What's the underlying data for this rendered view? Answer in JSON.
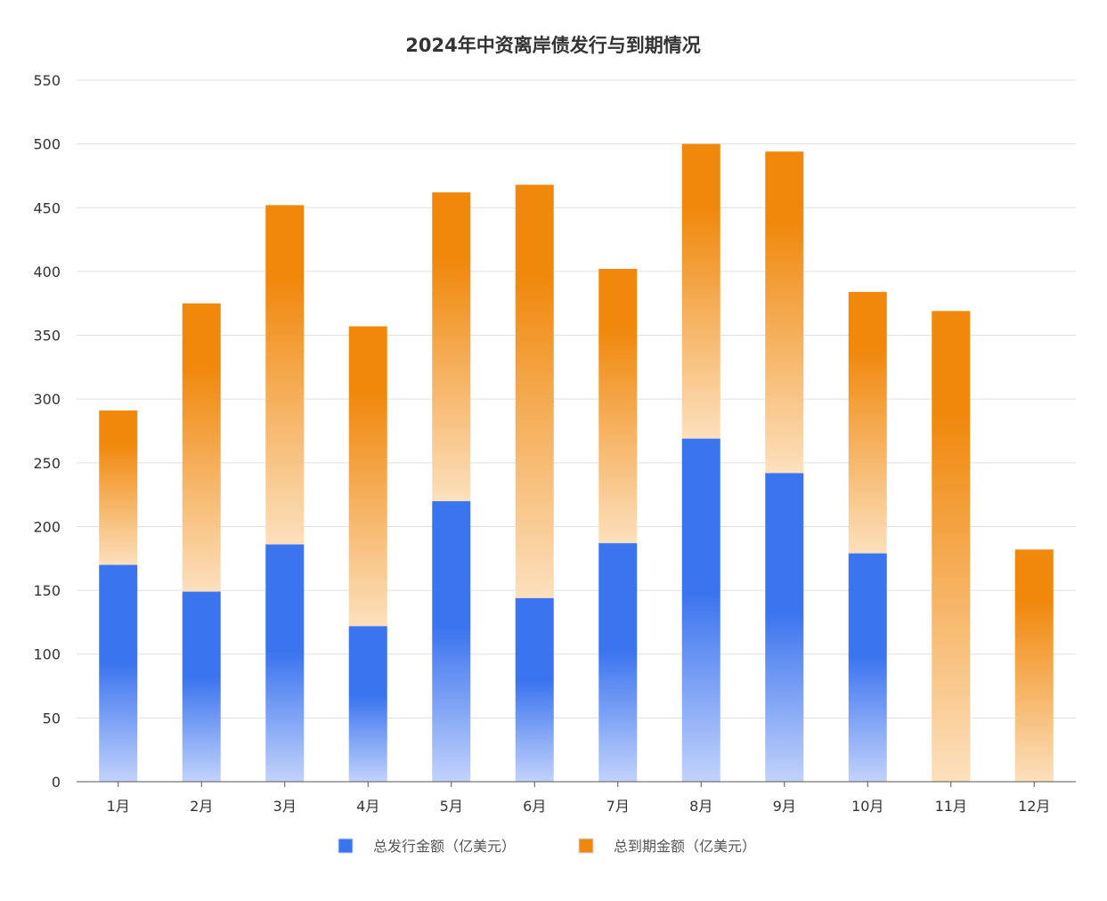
{
  "chart_data": {
    "type": "bar",
    "stacked": true,
    "title": "2024年中资离岸债发行与到期情况",
    "xlabel": "",
    "ylabel": "",
    "ylim": [
      0,
      550
    ],
    "yticks": [
      0,
      50,
      100,
      150,
      200,
      250,
      300,
      350,
      400,
      450,
      500,
      550
    ],
    "grid": true,
    "legend_position": "bottom",
    "categories": [
      "1月",
      "2月",
      "3月",
      "4月",
      "5月",
      "6月",
      "7月",
      "8月",
      "9月",
      "10月",
      "11月",
      "12月"
    ],
    "series": [
      {
        "name": "总发行金额（亿美元）",
        "color": "#3b74ef",
        "values": [
          170,
          149,
          186,
          122,
          220,
          144,
          187,
          269,
          242,
          179,
          0,
          0
        ]
      },
      {
        "name": "总到期金额（亿美元）",
        "color": "#f0880c",
        "values": [
          121,
          226,
          266,
          235,
          242,
          324,
          215,
          231,
          252,
          205,
          369,
          182
        ]
      }
    ]
  }
}
